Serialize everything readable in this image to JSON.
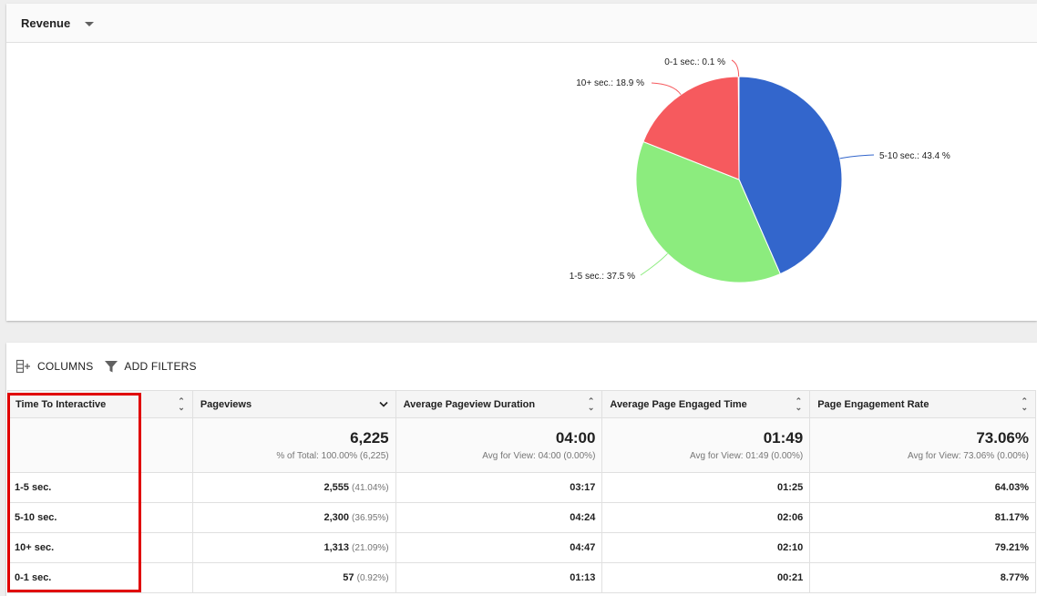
{
  "chart_header": {
    "metric": "Revenue"
  },
  "chart_data": {
    "type": "pie",
    "slices": [
      {
        "label": "5-10 sec.",
        "value": 43.4,
        "color": "#3366cc",
        "display": "5-10 sec.: 43.4 %"
      },
      {
        "label": "1-5 sec.",
        "value": 37.5,
        "color": "#8cec7e",
        "display": "1-5 sec.: 37.5 %"
      },
      {
        "label": "10+ sec.",
        "value": 18.9,
        "color": "#f65a5e",
        "display": "10+ sec.: 18.9 %"
      },
      {
        "label": "0-1 sec.",
        "value": 0.1,
        "color": "#f65a5e",
        "display": "0-1 sec.: 0.1 %"
      }
    ]
  },
  "toolbar": {
    "columns_label": "COLUMNS",
    "filters_label": "ADD FILTERS"
  },
  "table": {
    "headers": [
      "Time To Interactive",
      "Pageviews",
      "Average Pageview Duration",
      "Average Page Engaged Time",
      "Page Engagement Rate"
    ],
    "totals": [
      {
        "value": "6,225",
        "sub": "% of Total: 100.00% (6,225)"
      },
      {
        "value": "04:00",
        "sub": "Avg for View: 04:00 (0.00%)"
      },
      {
        "value": "01:49",
        "sub": "Avg for View: 01:49 (0.00%)"
      },
      {
        "value": "73.06%",
        "sub": "Avg for View: 73.06% (0.00%)"
      }
    ],
    "rows": [
      {
        "dim": "1-5 sec.",
        "pageviews": "2,555",
        "pct": "(41.04%)",
        "duration": "03:17",
        "engaged": "01:25",
        "rate": "64.03%"
      },
      {
        "dim": "5-10 sec.",
        "pageviews": "2,300",
        "pct": "(36.95%)",
        "duration": "04:24",
        "engaged": "02:06",
        "rate": "81.17%"
      },
      {
        "dim": "10+ sec.",
        "pageviews": "1,313",
        "pct": "(21.09%)",
        "duration": "04:47",
        "engaged": "02:10",
        "rate": "79.21%"
      },
      {
        "dim": "0-1 sec.",
        "pageviews": "57",
        "pct": "(0.92%)",
        "duration": "01:13",
        "engaged": "00:21",
        "rate": "8.77%"
      }
    ]
  },
  "colors": {
    "highlight": "#e00000"
  }
}
